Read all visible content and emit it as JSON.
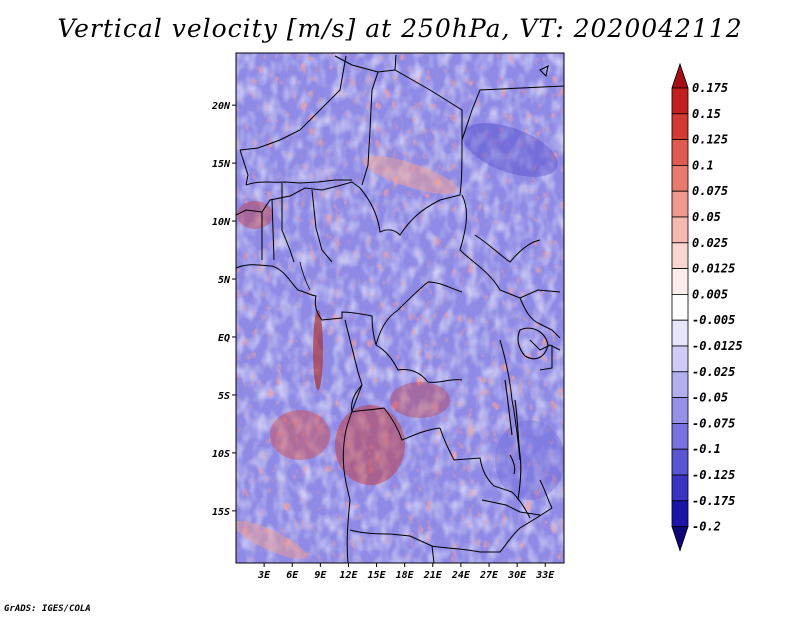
{
  "title": "Vertical velocity [m/s] at 250hPa, VT: 2020042112",
  "credit": "GrADS: IGES/COLA",
  "lat_labels": [
    "20N",
    "15N",
    "10N",
    "5N",
    "EQ",
    "5S",
    "10S",
    "15S"
  ],
  "lat_values": [
    20,
    15,
    10,
    5,
    0,
    -5,
    -10,
    -15
  ],
  "lon_labels": [
    "3E",
    "6E",
    "9E",
    "12E",
    "15E",
    "18E",
    "21E",
    "24E",
    "27E",
    "30E",
    "33E"
  ],
  "lon_values": [
    3,
    6,
    9,
    12,
    15,
    18,
    21,
    24,
    27,
    30,
    33
  ],
  "extent": {
    "lon_min": 0,
    "lon_max": 35,
    "lat_min": -19.5,
    "lat_max": 24.5
  },
  "colorbar": {
    "labels": [
      "0.175",
      "0.15",
      "0.125",
      "0.1",
      "0.075",
      "0.05",
      "0.025",
      "0.0125",
      "0.005",
      "-0.005",
      "-0.0125",
      "-0.025",
      "-0.05",
      "-0.075",
      "-0.1",
      "-0.125",
      "-0.175",
      "-0.2"
    ],
    "colors": [
      "#a50f15",
      "#c2201f",
      "#d23a33",
      "#df5a4f",
      "#e97a6e",
      "#f09a8e",
      "#f6b9b0",
      "#fad6d0",
      "#fdeeeb",
      "#ffffff",
      "#e6e6fa",
      "#cfcdf6",
      "#b3b0ef",
      "#9692e8",
      "#7873df",
      "#5a55d3",
      "#3a33c2",
      "#1c14a8",
      "#0c067a"
    ]
  },
  "colors": {
    "positive": "#d23a33",
    "negative": "#5a55d3",
    "neutral": "#ffffff",
    "border": "#000000"
  }
}
